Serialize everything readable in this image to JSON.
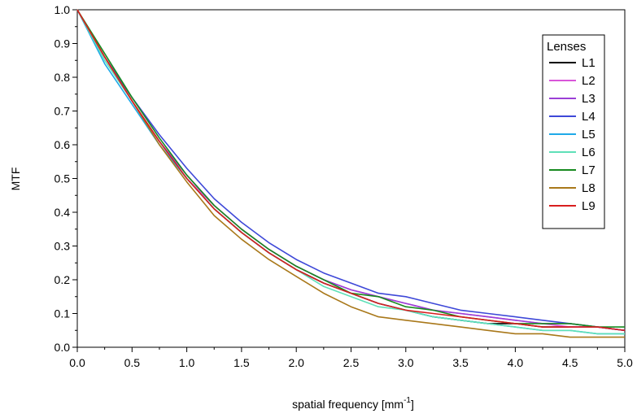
{
  "chart_data": {
    "type": "line",
    "xlabel": "spatial frequency [mm",
    "xlabel_sup": "-1",
    "xlabel_suffix": "]",
    "ylabel": "MTF",
    "xlim": [
      0,
      5
    ],
    "ylim": [
      0,
      1
    ],
    "x_ticks": [
      "0.0",
      "0.5",
      "1.0",
      "1.5",
      "2.0",
      "2.5",
      "3.0",
      "3.5",
      "4.0",
      "4.5",
      "5.0"
    ],
    "y_ticks": [
      "0.0",
      "0.1",
      "0.2",
      "0.3",
      "0.4",
      "0.5",
      "0.6",
      "0.7",
      "0.8",
      "0.9",
      "1.0"
    ],
    "grid": false,
    "legend": {
      "title": "Lenses",
      "position": "top-right"
    },
    "series": [
      {
        "name": "L1",
        "color": "#000000",
        "x": [
          0,
          0.25,
          0.5,
          0.75,
          1.0,
          1.25,
          1.5,
          1.75,
          2.0,
          2.25,
          2.5,
          2.75,
          3.0,
          3.25,
          3.5,
          3.75,
          4.0,
          4.25,
          4.5,
          4.75,
          5.0
        ],
        "y": [
          1.0,
          0.86,
          0.73,
          0.61,
          0.5,
          0.41,
          0.34,
          0.28,
          0.23,
          0.19,
          0.16,
          0.13,
          0.11,
          0.09,
          0.08,
          0.07,
          0.07,
          0.06,
          0.06,
          0.06,
          0.05
        ]
      },
      {
        "name": "L2",
        "color": "#d955d9",
        "x": [
          0,
          0.25,
          0.5,
          0.75,
          1.0,
          1.25,
          1.5,
          1.75,
          2.0,
          2.25,
          2.5,
          2.75,
          3.0,
          3.25,
          3.5,
          3.75,
          4.0,
          4.25,
          4.5,
          4.75,
          5.0
        ],
        "y": [
          1.0,
          0.86,
          0.73,
          0.61,
          0.5,
          0.42,
          0.35,
          0.29,
          0.24,
          0.2,
          0.17,
          0.15,
          0.13,
          0.11,
          0.1,
          0.09,
          0.08,
          0.07,
          0.06,
          0.06,
          0.05
        ]
      },
      {
        "name": "L3",
        "color": "#9b3fd6",
        "x": [
          0,
          0.25,
          0.5,
          0.75,
          1.0,
          1.25,
          1.5,
          1.75,
          2.0,
          2.25,
          2.5,
          2.75,
          3.0,
          3.25,
          3.5,
          3.75,
          4.0,
          4.25,
          4.5,
          4.75,
          5.0
        ],
        "y": [
          1.0,
          0.86,
          0.73,
          0.61,
          0.51,
          0.42,
          0.35,
          0.29,
          0.24,
          0.2,
          0.17,
          0.15,
          0.13,
          0.11,
          0.1,
          0.09,
          0.08,
          0.07,
          0.07,
          0.06,
          0.05
        ]
      },
      {
        "name": "L4",
        "color": "#3e48d8",
        "x": [
          0,
          0.25,
          0.5,
          0.75,
          1.0,
          1.25,
          1.5,
          1.75,
          2.0,
          2.25,
          2.5,
          2.75,
          3.0,
          3.25,
          3.5,
          3.75,
          4.0,
          4.25,
          4.5,
          4.75,
          5.0
        ],
        "y": [
          1.0,
          0.86,
          0.74,
          0.63,
          0.53,
          0.44,
          0.37,
          0.31,
          0.26,
          0.22,
          0.19,
          0.16,
          0.15,
          0.13,
          0.11,
          0.1,
          0.09,
          0.08,
          0.07,
          0.06,
          0.05
        ]
      },
      {
        "name": "L5",
        "color": "#1fa9e8",
        "x": [
          0,
          0.25,
          0.5,
          0.75,
          1.0,
          1.25,
          1.5,
          1.75,
          2.0,
          2.25,
          2.5,
          2.75,
          3.0,
          3.25,
          3.5,
          3.75,
          4.0,
          4.25,
          4.5,
          4.75,
          5.0
        ],
        "y": [
          1.0,
          0.84,
          0.72,
          0.6,
          0.5,
          0.41,
          0.34,
          0.28,
          0.23,
          0.19,
          0.16,
          0.13,
          0.11,
          0.09,
          0.08,
          0.07,
          0.06,
          0.05,
          0.05,
          0.04,
          0.04
        ]
      },
      {
        "name": "L6",
        "color": "#5fe0b8",
        "x": [
          0,
          0.25,
          0.5,
          0.75,
          1.0,
          1.25,
          1.5,
          1.75,
          2.0,
          2.25,
          2.5,
          2.75,
          3.0,
          3.25,
          3.5,
          3.75,
          4.0,
          4.25,
          4.5,
          4.75,
          5.0
        ],
        "y": [
          1.0,
          0.85,
          0.73,
          0.61,
          0.5,
          0.41,
          0.34,
          0.28,
          0.23,
          0.18,
          0.15,
          0.12,
          0.11,
          0.09,
          0.08,
          0.07,
          0.06,
          0.05,
          0.05,
          0.04,
          0.04
        ]
      },
      {
        "name": "L7",
        "color": "#178a1f",
        "x": [
          0,
          0.25,
          0.5,
          0.75,
          1.0,
          1.25,
          1.5,
          1.75,
          2.0,
          2.25,
          2.5,
          2.75,
          3.0,
          3.25,
          3.5,
          3.75,
          4.0,
          4.25,
          4.5,
          4.75,
          5.0
        ],
        "y": [
          1.0,
          0.87,
          0.74,
          0.62,
          0.51,
          0.42,
          0.35,
          0.29,
          0.24,
          0.2,
          0.16,
          0.15,
          0.12,
          0.11,
          0.09,
          0.08,
          0.07,
          0.07,
          0.07,
          0.06,
          0.06
        ]
      },
      {
        "name": "L8",
        "color": "#a9781a",
        "x": [
          0,
          0.25,
          0.5,
          0.75,
          1.0,
          1.25,
          1.5,
          1.75,
          2.0,
          2.25,
          2.5,
          2.75,
          3.0,
          3.25,
          3.5,
          3.75,
          4.0,
          4.25,
          4.5,
          4.75,
          5.0
        ],
        "y": [
          1.0,
          0.86,
          0.73,
          0.6,
          0.49,
          0.39,
          0.32,
          0.26,
          0.21,
          0.16,
          0.12,
          0.09,
          0.08,
          0.07,
          0.06,
          0.05,
          0.04,
          0.04,
          0.03,
          0.03,
          0.03
        ]
      },
      {
        "name": "L9",
        "color": "#d81e1e",
        "x": [
          0,
          0.25,
          0.5,
          0.75,
          1.0,
          1.25,
          1.5,
          1.75,
          2.0,
          2.25,
          2.5,
          2.75,
          3.0,
          3.25,
          3.5,
          3.75,
          4.0,
          4.25,
          4.5,
          4.75,
          5.0
        ],
        "y": [
          1.0,
          0.86,
          0.73,
          0.61,
          0.5,
          0.41,
          0.34,
          0.28,
          0.23,
          0.19,
          0.16,
          0.13,
          0.11,
          0.1,
          0.09,
          0.08,
          0.07,
          0.06,
          0.06,
          0.06,
          0.05
        ]
      }
    ]
  }
}
